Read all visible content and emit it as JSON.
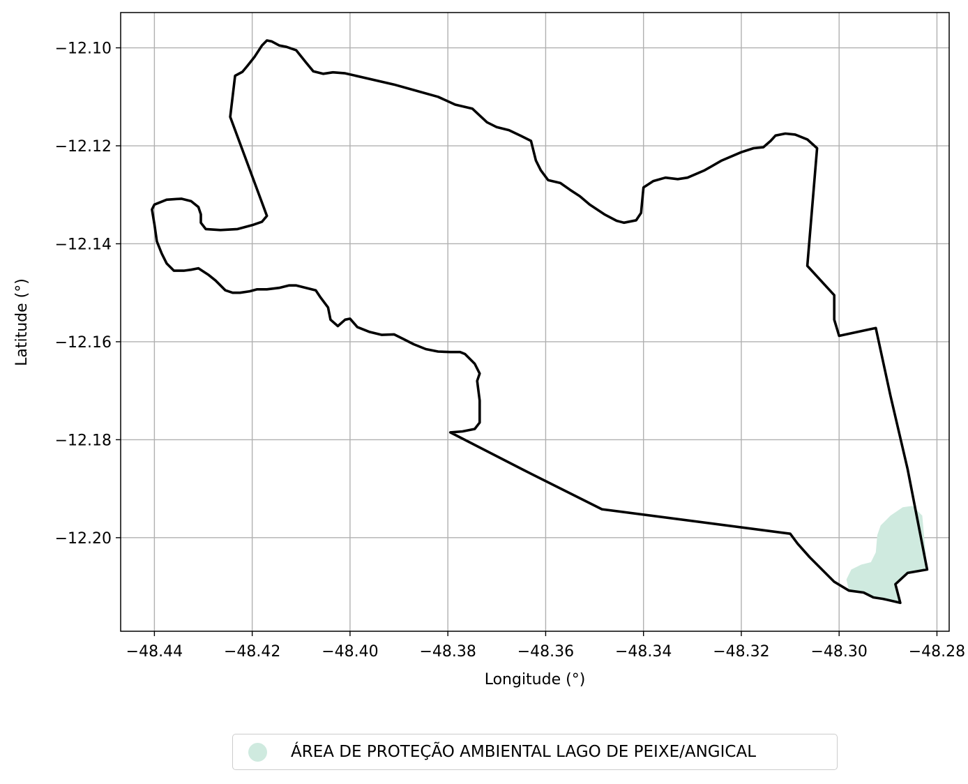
{
  "chart_data": {
    "type": "map",
    "xlabel": "Longitude (°)",
    "ylabel": "Latitude (°)",
    "xlim": [
      -48.4469,
      -48.2775
    ],
    "ylim": [
      -12.2191,
      -12.0928
    ],
    "x_ticks": [
      -48.44,
      -48.42,
      -48.4,
      -48.38,
      -48.36,
      -48.34,
      -48.32,
      -48.3,
      -48.28
    ],
    "x_tick_labels": [
      "−48.44",
      "−48.42",
      "−48.40",
      "−48.38",
      "−48.36",
      "−48.34",
      "−48.32",
      "−48.30",
      "−48.28"
    ],
    "y_ticks": [
      -12.1,
      -12.12,
      -12.14,
      -12.16,
      -12.18,
      -12.2
    ],
    "y_tick_labels": [
      "−12.10",
      "−12.12",
      "−12.14",
      "−12.16",
      "−12.18",
      "−12.20"
    ],
    "grid": true,
    "legend_placement": "bottom-center",
    "boundary_color": "#000000",
    "protected_area_color": "#cfeadf",
    "legend": {
      "label": "ÁREA DE PROTEÇÃO AMBIENTAL LAGO DE PEIXE/ANGICAL"
    },
    "boundary": [
      [
        -48.4245,
        -12.1141
      ],
      [
        -48.4235,
        -12.1057
      ],
      [
        -48.422,
        -12.1049
      ],
      [
        -48.421,
        -12.1037
      ],
      [
        -48.4195,
        -12.1018
      ],
      [
        -48.418,
        -12.0995
      ],
      [
        -48.417,
        -12.0985
      ],
      [
        -48.416,
        -12.0987
      ],
      [
        -48.4145,
        -12.0995
      ],
      [
        -48.413,
        -12.0998
      ],
      [
        -48.411,
        -12.1005
      ],
      [
        -48.409,
        -12.103
      ],
      [
        -48.4075,
        -12.1048
      ],
      [
        -48.4055,
        -12.1053
      ],
      [
        -48.4035,
        -12.105
      ],
      [
        -48.401,
        -12.1052
      ],
      [
        -48.391,
        -12.1075
      ],
      [
        -48.382,
        -12.11
      ],
      [
        -48.3785,
        -12.1116
      ],
      [
        -48.375,
        -12.1124
      ],
      [
        -48.372,
        -12.1152
      ],
      [
        -48.37,
        -12.1162
      ],
      [
        -48.3675,
        -12.1168
      ],
      [
        -48.365,
        -12.118
      ],
      [
        -48.363,
        -12.119
      ],
      [
        -48.362,
        -12.123
      ],
      [
        -48.361,
        -12.125
      ],
      [
        -48.3595,
        -12.127
      ],
      [
        -48.357,
        -12.1276
      ],
      [
        -48.355,
        -12.129
      ],
      [
        -48.353,
        -12.1303
      ],
      [
        -48.351,
        -12.132
      ],
      [
        -48.348,
        -12.134
      ],
      [
        -48.3455,
        -12.1353
      ],
      [
        -48.344,
        -12.1357
      ],
      [
        -48.3415,
        -12.1352
      ],
      [
        -48.3405,
        -12.1337
      ],
      [
        -48.34,
        -12.1285
      ],
      [
        -48.338,
        -12.1272
      ],
      [
        -48.3355,
        -12.1265
      ],
      [
        -48.333,
        -12.1268
      ],
      [
        -48.331,
        -12.1265
      ],
      [
        -48.3275,
        -12.125
      ],
      [
        -48.324,
        -12.123
      ],
      [
        -48.32,
        -12.1213
      ],
      [
        -48.3175,
        -12.1205
      ],
      [
        -48.3155,
        -12.1203
      ],
      [
        -48.314,
        -12.119
      ],
      [
        -48.313,
        -12.1179
      ],
      [
        -48.311,
        -12.1175
      ],
      [
        -48.309,
        -12.1177
      ],
      [
        -48.3065,
        -12.1187
      ],
      [
        -48.3045,
        -12.1205
      ],
      [
        -48.3065,
        -12.1445
      ],
      [
        -48.301,
        -12.1505
      ],
      [
        -48.301,
        -12.1555
      ],
      [
        -48.3,
        -12.1588
      ],
      [
        -48.2925,
        -12.1572
      ],
      [
        -48.2895,
        -12.171
      ],
      [
        -48.286,
        -12.186
      ],
      [
        -48.282,
        -12.2065
      ],
      [
        -48.286,
        -12.2072
      ],
      [
        -48.2885,
        -12.2095
      ],
      [
        -48.2875,
        -12.2133
      ],
      [
        -48.291,
        -12.2125
      ],
      [
        -48.293,
        -12.2122
      ],
      [
        -48.295,
        -12.2112
      ],
      [
        -48.298,
        -12.2108
      ],
      [
        -48.301,
        -12.209
      ],
      [
        -48.306,
        -12.204
      ],
      [
        -48.3085,
        -12.2012
      ],
      [
        -48.31,
        -12.1992
      ],
      [
        -48.3485,
        -12.1942
      ],
      [
        -48.3645,
        -12.1862
      ],
      [
        -48.3795,
        -12.1785
      ],
      [
        -48.377,
        -12.1783
      ],
      [
        -48.3745,
        -12.1778
      ],
      [
        -48.3735,
        -12.1765
      ],
      [
        -48.3735,
        -12.172
      ],
      [
        -48.374,
        -12.168
      ],
      [
        -48.3735,
        -12.1665
      ],
      [
        -48.3745,
        -12.1645
      ],
      [
        -48.3765,
        -12.1625
      ],
      [
        -48.3775,
        -12.1621
      ],
      [
        -48.3795,
        -12.1621
      ],
      [
        -48.382,
        -12.162
      ],
      [
        -48.3845,
        -12.1615
      ],
      [
        -48.387,
        -12.1605
      ],
      [
        -48.389,
        -12.1595
      ],
      [
        -48.391,
        -12.1585
      ],
      [
        -48.3935,
        -12.1586
      ],
      [
        -48.396,
        -12.158
      ],
      [
        -48.3985,
        -12.157
      ],
      [
        -48.4,
        -12.1553
      ],
      [
        -48.401,
        -12.1555
      ],
      [
        -48.4025,
        -12.1568
      ],
      [
        -48.404,
        -12.1555
      ],
      [
        -48.4045,
        -12.153
      ],
      [
        -48.406,
        -12.151
      ],
      [
        -48.407,
        -12.1495
      ],
      [
        -48.409,
        -12.149
      ],
      [
        -48.411,
        -12.1485
      ],
      [
        -48.4125,
        -12.1485
      ],
      [
        -48.4145,
        -12.149
      ],
      [
        -48.417,
        -12.1493
      ],
      [
        -48.419,
        -12.1493
      ],
      [
        -48.4205,
        -12.1497
      ],
      [
        -48.4225,
        -12.15
      ],
      [
        -48.424,
        -12.15
      ],
      [
        -48.4255,
        -12.1495
      ],
      [
        -48.4275,
        -12.1475
      ],
      [
        -48.429,
        -12.1463
      ],
      [
        -48.431,
        -12.145
      ],
      [
        -48.4325,
        -12.1453
      ],
      [
        -48.434,
        -12.1455
      ],
      [
        -48.436,
        -12.1455
      ],
      [
        -48.4375,
        -12.144
      ],
      [
        -48.4385,
        -12.142
      ],
      [
        -48.4395,
        -12.1395
      ],
      [
        -48.44,
        -12.136
      ],
      [
        -48.4405,
        -12.133
      ],
      [
        -48.44,
        -12.132
      ],
      [
        -48.4375,
        -12.131
      ],
      [
        -48.4345,
        -12.1308
      ],
      [
        -48.4325,
        -12.1313
      ],
      [
        -48.431,
        -12.1325
      ],
      [
        -48.4305,
        -12.134
      ],
      [
        -48.4305,
        -12.1357
      ],
      [
        -48.4295,
        -12.137
      ],
      [
        -48.4265,
        -12.1372
      ],
      [
        -48.423,
        -12.137
      ],
      [
        -48.42,
        -12.1362
      ],
      [
        -48.418,
        -12.1355
      ],
      [
        -48.417,
        -12.1343
      ],
      [
        -48.4245,
        -12.1141
      ]
    ],
    "protected_area": [
      [
        -48.2985,
        -12.2085
      ],
      [
        -48.2975,
        -12.2065
      ],
      [
        -48.2955,
        -12.2055
      ],
      [
        -48.2935,
        -12.205
      ],
      [
        -48.2925,
        -12.203
      ],
      [
        -48.2922,
        -12.1995
      ],
      [
        -48.2915,
        -12.1975
      ],
      [
        -48.2895,
        -12.1955
      ],
      [
        -48.287,
        -12.1938
      ],
      [
        -48.285,
        -12.1935
      ],
      [
        -48.283,
        -12.1955
      ],
      [
        -48.282,
        -12.2065
      ],
      [
        -48.286,
        -12.2072
      ],
      [
        -48.2885,
        -12.2095
      ],
      [
        -48.2875,
        -12.2133
      ],
      [
        -48.291,
        -12.2125
      ],
      [
        -48.293,
        -12.2122
      ],
      [
        -48.295,
        -12.2112
      ],
      [
        -48.298,
        -12.2108
      ]
    ]
  }
}
